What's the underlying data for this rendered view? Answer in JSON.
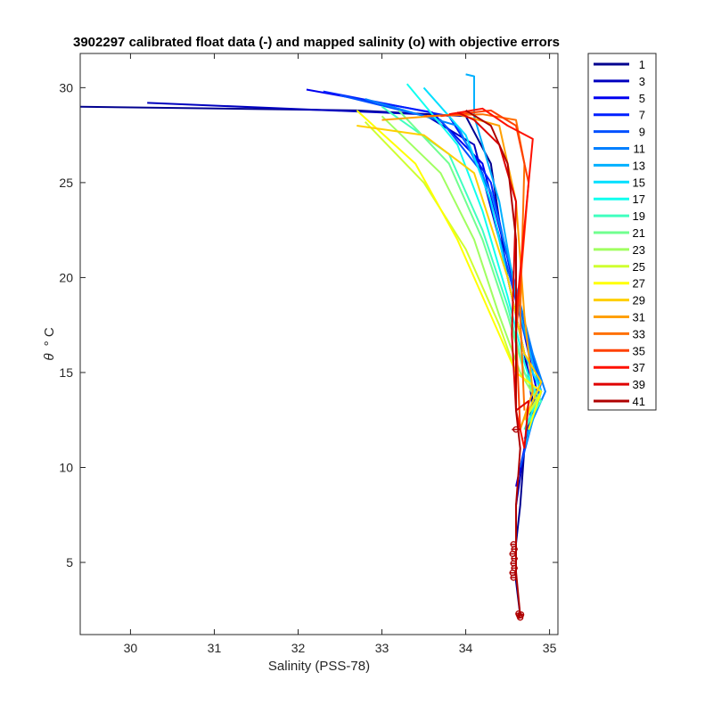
{
  "chart_data": {
    "type": "line",
    "title": "3902297 calibrated float data (-) and mapped salinity (o) with objective errors",
    "xlabel": "Salinity (PSS-78)",
    "ylabel_symbol": "θ",
    "ylabel_unit": "° C",
    "xlim": [
      29.4,
      35.1
    ],
    "ylim": [
      1.2,
      31.8
    ],
    "xticks": [
      30,
      31,
      32,
      33,
      34,
      35
    ],
    "yticks": [
      5,
      10,
      15,
      20,
      25,
      30
    ],
    "grid": false,
    "legend_placement": "outside-right",
    "legend": [
      "1",
      "3",
      "5",
      "7",
      "9",
      "11",
      "13",
      "15",
      "17",
      "19",
      "21",
      "23",
      "25",
      "27",
      "29",
      "31",
      "33",
      "35",
      "37",
      "39",
      "41"
    ],
    "colormap": "jet",
    "series": [
      {
        "name": "1",
        "color": "#00008f",
        "x": [
          29.4,
          32.7,
          34.0,
          34.3,
          34.5,
          34.7,
          34.8,
          34.7,
          34.65,
          34.6,
          34.6,
          34.6,
          34.65
        ],
        "y": [
          29.0,
          28.8,
          28.5,
          26.0,
          20.0,
          16.0,
          13.5,
          11.0,
          8.0,
          6.0,
          5.0,
          4.0,
          2.2
        ]
      },
      {
        "name": "3",
        "color": "#0000bf",
        "x": [
          30.2,
          33.5,
          34.1,
          34.4,
          34.6,
          34.75,
          34.8,
          34.7,
          34.6
        ],
        "y": [
          29.2,
          28.6,
          27.0,
          22.0,
          18.0,
          15.0,
          13.0,
          11.0,
          8.0
        ]
      },
      {
        "name": "5",
        "color": "#0000ef",
        "x": [
          32.1,
          33.6,
          34.2,
          34.5,
          34.7,
          34.85,
          34.75,
          34.6
        ],
        "y": [
          29.9,
          28.7,
          26.0,
          21.0,
          17.0,
          14.0,
          12.0,
          9.0
        ]
      },
      {
        "name": "7",
        "color": "#0020ff",
        "x": [
          32.3,
          33.8,
          34.3,
          34.55,
          34.75,
          34.9,
          34.7
        ],
        "y": [
          29.8,
          28.5,
          25.0,
          20.0,
          16.5,
          14.0,
          11.0
        ]
      },
      {
        "name": "9",
        "color": "#0050ff",
        "x": [
          32.5,
          33.7,
          34.2,
          34.5,
          34.7,
          34.9,
          34.8,
          34.65
        ],
        "y": [
          29.6,
          28.3,
          25.5,
          20.5,
          17.0,
          14.5,
          12.5,
          10.0
        ]
      },
      {
        "name": "11",
        "color": "#0080ff",
        "x": [
          32.8,
          33.9,
          34.3,
          34.6,
          34.8,
          34.95,
          34.7
        ],
        "y": [
          29.4,
          28.0,
          24.5,
          19.5,
          16.0,
          14.0,
          11.5
        ]
      },
      {
        "name": "13",
        "color": "#00b0ff",
        "x": [
          34.0,
          34.1,
          34.1,
          34.4,
          34.6,
          34.8,
          34.9,
          34.7
        ],
        "y": [
          30.7,
          30.6,
          28.5,
          24.0,
          19.0,
          15.5,
          14.0,
          11.0
        ]
      },
      {
        "name": "15",
        "color": "#00dfff",
        "x": [
          33.5,
          34.0,
          34.3,
          34.5,
          34.7,
          34.9,
          34.75
        ],
        "y": [
          30.0,
          27.5,
          24.0,
          20.0,
          16.0,
          14.0,
          12.0
        ]
      },
      {
        "name": "17",
        "color": "#10ffef",
        "x": [
          33.3,
          33.9,
          34.2,
          34.5,
          34.7,
          34.85,
          34.7
        ],
        "y": [
          30.2,
          27.0,
          23.5,
          19.0,
          15.5,
          13.5,
          12.0
        ]
      },
      {
        "name": "19",
        "color": "#40ffbf",
        "x": [
          33.0,
          33.8,
          34.2,
          34.5,
          34.7,
          34.9,
          34.7
        ],
        "y": [
          29.0,
          26.5,
          22.5,
          18.5,
          15.0,
          13.5,
          12.0
        ]
      },
      {
        "name": "21",
        "color": "#70ff8f",
        "x": [
          33.2,
          33.8,
          34.2,
          34.5,
          34.7,
          34.85,
          34.7
        ],
        "y": [
          28.8,
          26.0,
          22.0,
          18.0,
          15.0,
          13.5,
          12.5
        ]
      },
      {
        "name": "23",
        "color": "#a0ff60",
        "x": [
          33.0,
          33.7,
          34.1,
          34.4,
          34.65,
          34.85,
          34.7
        ],
        "y": [
          28.5,
          25.5,
          22.0,
          18.0,
          15.0,
          13.5,
          12.5
        ]
      },
      {
        "name": "25",
        "color": "#cfff30",
        "x": [
          32.8,
          33.5,
          34.0,
          34.4,
          34.6,
          34.9,
          34.7
        ],
        "y": [
          28.2,
          25.0,
          21.5,
          17.5,
          15.0,
          14.0,
          12.5
        ]
      },
      {
        "name": "27",
        "color": "#ffff00",
        "x": [
          32.7,
          33.4,
          33.9,
          34.3,
          34.6,
          34.9,
          34.75
        ],
        "y": [
          28.8,
          26.0,
          22.0,
          18.0,
          15.0,
          14.0,
          12.0
        ]
      },
      {
        "name": "29",
        "color": "#ffcf00",
        "x": [
          32.7,
          33.5,
          34.1,
          34.5,
          34.7,
          34.9,
          34.7
        ],
        "y": [
          28.0,
          27.5,
          25.5,
          20.0,
          16.0,
          14.5,
          12.5
        ]
      },
      {
        "name": "31",
        "color": "#ffa000",
        "x": [
          33.0,
          33.9,
          34.4,
          34.6,
          34.7,
          34.8,
          34.65
        ],
        "y": [
          28.3,
          28.6,
          28.0,
          24.0,
          18.0,
          14.0,
          12.0
        ]
      },
      {
        "name": "33",
        "color": "#ff7000",
        "x": [
          33.5,
          34.2,
          34.6,
          34.7,
          34.65,
          34.7
        ],
        "y": [
          28.5,
          28.6,
          28.3,
          26.0,
          18.0,
          13.0
        ]
      },
      {
        "name": "35",
        "color": "#ff4000",
        "x": [
          33.7,
          34.3,
          34.6,
          34.75,
          34.6,
          34.65
        ],
        "y": [
          28.5,
          28.8,
          28.0,
          25.0,
          17.0,
          12.0
        ]
      },
      {
        "name": "37",
        "color": "#ff1000",
        "x": [
          33.8,
          34.2,
          34.5,
          34.8,
          34.6,
          34.6,
          34.7
        ],
        "y": [
          28.6,
          28.9,
          28.0,
          27.3,
          18.0,
          13.0,
          11.0
        ]
      },
      {
        "name": "39",
        "color": "#df0000",
        "x": [
          33.9,
          34.1,
          34.4,
          34.6,
          34.55,
          34.6,
          34.75,
          34.7
        ],
        "y": [
          28.7,
          28.3,
          27.0,
          24.0,
          17.0,
          13.0,
          13.5,
          11.0
        ]
      },
      {
        "name": "41",
        "color": "#af0000",
        "x": [
          34.0,
          34.3,
          34.5,
          34.6,
          34.6,
          34.6,
          34.65,
          34.6,
          34.6,
          34.6,
          34.65
        ],
        "y": [
          28.8,
          28.0,
          26.0,
          22.0,
          17.0,
          13.0,
          11.0,
          8.0,
          6.0,
          4.5,
          2.2
        ]
      }
    ],
    "mapped_points": {
      "color": "#af0000",
      "x": [
        34.57,
        34.58,
        34.56,
        34.57,
        34.58,
        34.56,
        34.57,
        34.58,
        34.63,
        34.64,
        34.65,
        34.66,
        34.6
      ],
      "y": [
        5.95,
        5.7,
        5.45,
        4.95,
        4.7,
        4.45,
        4.2,
        5.2,
        2.3,
        2.2,
        2.1,
        2.25,
        12.0
      ],
      "err": [
        0.04,
        0.04,
        0.04,
        0.04,
        0.04,
        0.04,
        0.04,
        0.04,
        0.03,
        0.03,
        0.03,
        0.03,
        0.05
      ]
    }
  }
}
